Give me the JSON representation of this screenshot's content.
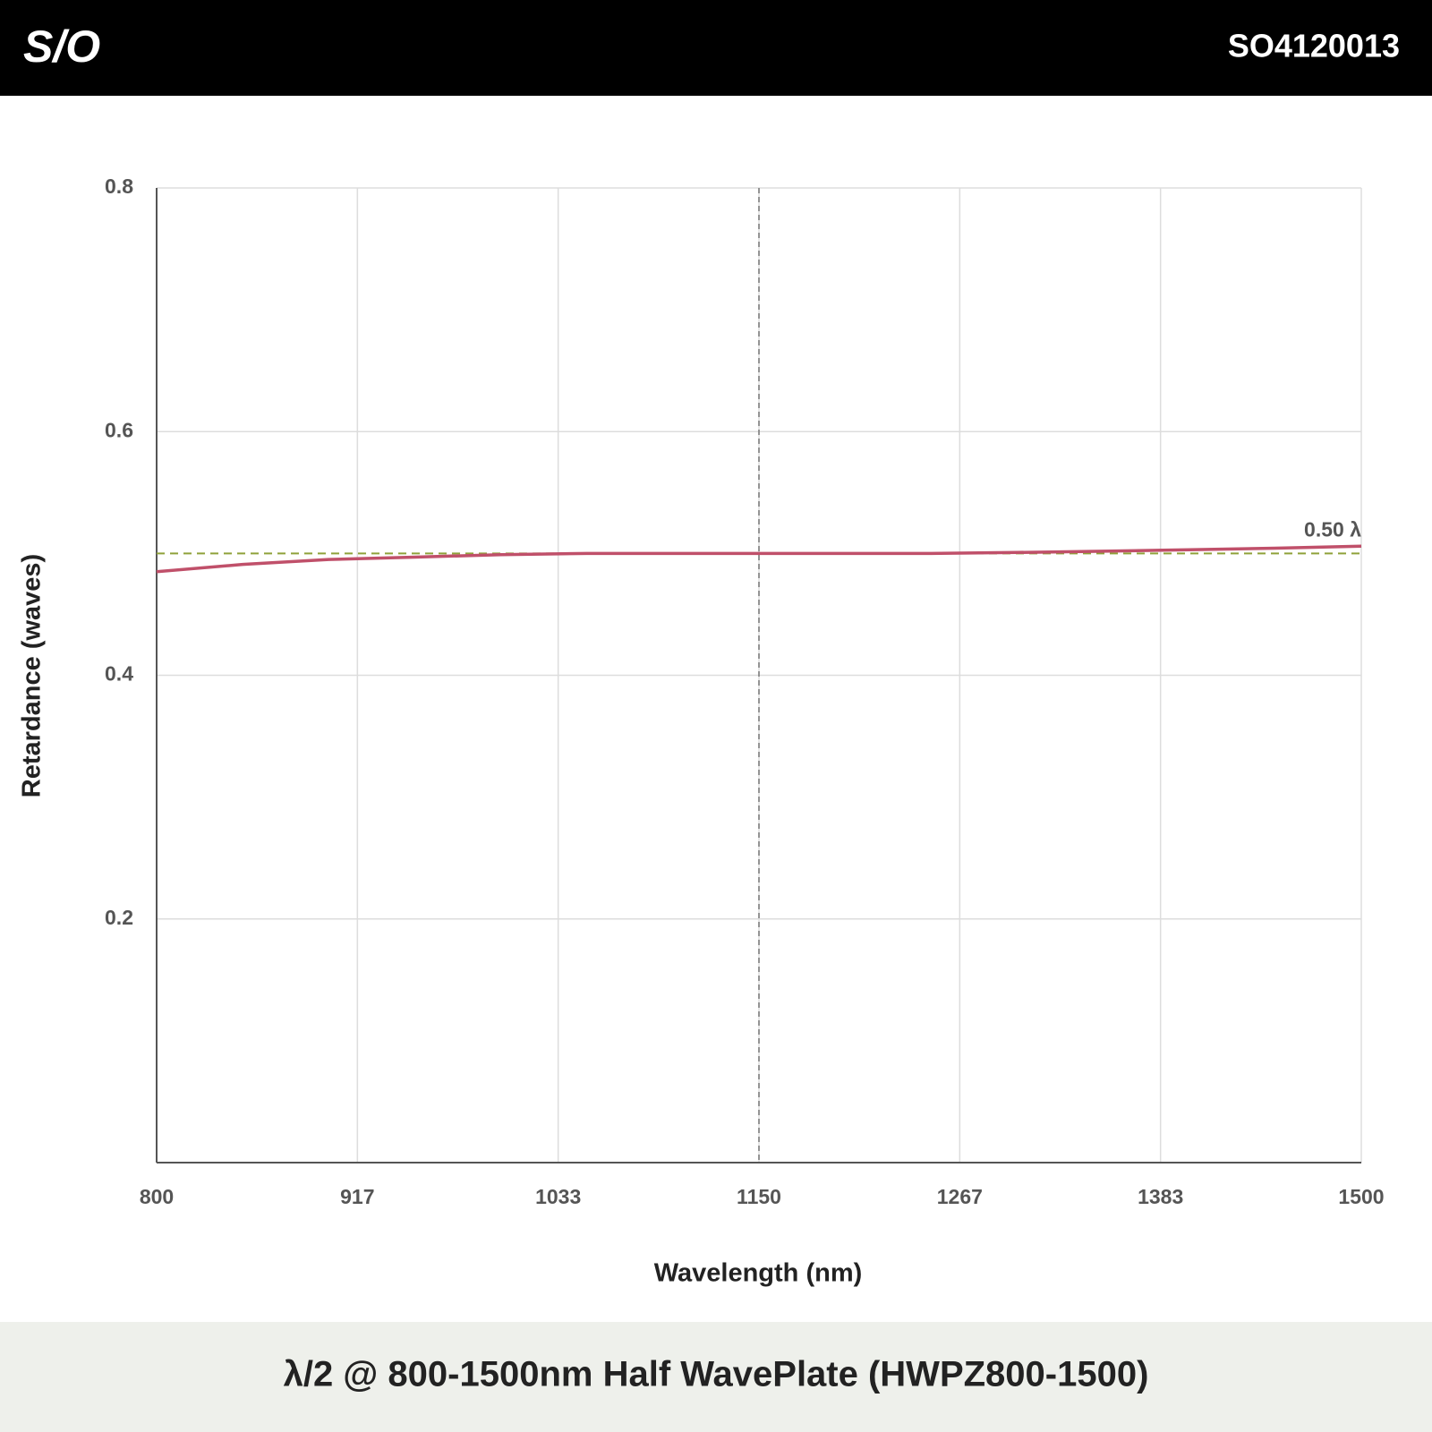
{
  "header": {
    "logo": "S/O",
    "code": "SO4120013"
  },
  "chart_data": {
    "type": "line",
    "title": "λ/2 @ 800-1500nm Half WavePlate (HWPZ800-1500)",
    "x_label": "Wavelength (nm)",
    "y_label": "Retardance (waves)",
    "x": [
      800,
      850,
      900,
      950,
      1000,
      1050,
      1100,
      1150,
      1200,
      1250,
      1300,
      1350,
      1400,
      1450,
      1500
    ],
    "values": [
      0.485,
      0.491,
      0.495,
      0.497,
      0.499,
      0.5,
      0.5,
      0.5,
      0.5,
      0.5,
      0.5008,
      0.5018,
      0.503,
      0.5043,
      0.506
    ],
    "color": "#c0506a",
    "xlim": [
      800,
      1500
    ],
    "xticks": [
      800,
      {
        "value": 916.667,
        "label": "917"
      },
      {
        "value": 1033.333,
        "label": "1033"
      },
      1150,
      {
        "value": 1266.667,
        "label": "1267"
      },
      {
        "value": 1383.333,
        "label": "1383"
      },
      1500
    ],
    "ylim": [
      0,
      0.8
    ],
    "yticks": [
      0.2,
      0.4,
      0.6,
      0.8
    ],
    "grid": true,
    "reference_line": {
      "value": 0.5,
      "label": "0.50 λ",
      "color": "#8fa23a"
    },
    "center_line": {
      "value": 1150,
      "color": "#777777"
    }
  }
}
